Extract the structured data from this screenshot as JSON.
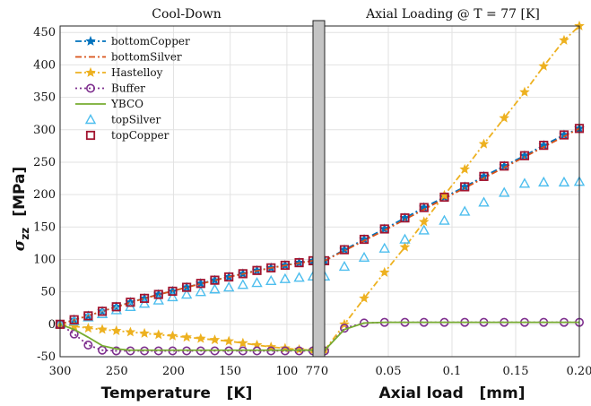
{
  "chart_data": {
    "type": "line",
    "ylabel_symbol": "σ",
    "ylabel_subscript": "zz",
    "ylabel_unit": "[MPa]",
    "ylim": [
      -50,
      460
    ],
    "yticks": [
      -50,
      0,
      50,
      100,
      150,
      200,
      250,
      300,
      350,
      400,
      450
    ],
    "grid": true,
    "legend_position": "top-left",
    "left_panel": {
      "title": "Cool-Down",
      "xlabel": "Temperature   [K]",
      "xlim": [
        300,
        77
      ],
      "x_direction": "reversed",
      "xticks": [
        300,
        250,
        200,
        150,
        100,
        77
      ]
    },
    "right_panel": {
      "title": "Axial Loading @ T = 77 [K]",
      "xlabel": "Axial load   [mm]",
      "xlim": [
        0,
        0.2
      ],
      "xticks": [
        0,
        0.05,
        0.1,
        0.15,
        0.2
      ],
      "xtick_labels": [
        "0",
        "0.05",
        "0.1",
        "0.15",
        "0.20"
      ]
    },
    "series": [
      {
        "name": "bottomCopper",
        "color": "#0072BD",
        "line": "dashdot",
        "marker": "star",
        "cooldown": {
          "x": [
            300,
            287.6,
            275.2,
            262.8,
            250.4,
            238,
            225.6,
            213.2,
            200.8,
            188.4,
            176,
            163.6,
            151.2,
            138.8,
            126.4,
            114,
            101.6,
            89.2,
            77
          ],
          "y": [
            0,
            7,
            13,
            20,
            27,
            34,
            40,
            46,
            51,
            57,
            63,
            68,
            73,
            78,
            83,
            87,
            91,
            95,
            98
          ]
        },
        "loading": {
          "x": [
            0,
            0.0155,
            0.031,
            0.047,
            0.063,
            0.078,
            0.094,
            0.11,
            0.125,
            0.141,
            0.157,
            0.172,
            0.188,
            0.2
          ],
          "y": [
            98,
            115,
            131,
            147,
            164,
            180,
            196,
            212,
            228,
            244,
            260,
            276,
            292,
            302
          ]
        }
      },
      {
        "name": "bottomSilver",
        "color": "#D95319",
        "line": "dashdot",
        "marker": "none",
        "cooldown": {
          "x": [
            300,
            262.8,
            225.6,
            188.4,
            151.2,
            114,
            77
          ],
          "y": [
            0,
            20,
            40,
            57,
            73,
            87,
            98
          ]
        },
        "loading": {
          "x": [
            0,
            0.05,
            0.1,
            0.15,
            0.2
          ],
          "y": [
            98,
            148,
            200,
            251,
            302
          ]
        }
      },
      {
        "name": "Hastelloy",
        "color": "#EDB120",
        "line": "dashdot",
        "marker": "star",
        "cooldown": {
          "x": [
            300,
            287.6,
            275.2,
            262.8,
            250.4,
            238,
            225.6,
            213.2,
            200.8,
            188.4,
            176,
            163.6,
            151.2,
            138.8,
            126.4,
            114,
            101.6,
            89.2,
            77
          ],
          "y": [
            0,
            -3,
            -6,
            -8,
            -10,
            -12,
            -14,
            -16,
            -18,
            -20,
            -22,
            -24,
            -26,
            -29,
            -32,
            -35,
            -37,
            -39,
            -40
          ]
        },
        "loading": {
          "x": [
            0,
            0.0155,
            0.031,
            0.047,
            0.063,
            0.078,
            0.094,
            0.11,
            0.125,
            0.141,
            0.157,
            0.172,
            0.188,
            0.2
          ],
          "y": [
            -40,
            0,
            40,
            80,
            119,
            158,
            199,
            239,
            278,
            318,
            358,
            398,
            438,
            460
          ]
        }
      },
      {
        "name": "Buffer",
        "color": "#7E2F8E",
        "line": "dotted",
        "marker": "circle",
        "cooldown": {
          "x": [
            300,
            287.6,
            275.2,
            262.8,
            250.4,
            238,
            225.6,
            213.2,
            200.8,
            188.4,
            176,
            163.6,
            151.2,
            138.8,
            126.4,
            114,
            101.6,
            89.2,
            77
          ],
          "y": [
            0,
            -15,
            -32,
            -40,
            -41,
            -41,
            -41,
            -41,
            -41,
            -41,
            -41,
            -41,
            -41,
            -41,
            -41,
            -41,
            -41,
            -41,
            -41
          ]
        },
        "loading": {
          "x": [
            0,
            0.0155,
            0.031,
            0.047,
            0.063,
            0.078,
            0.094,
            0.11,
            0.125,
            0.141,
            0.157,
            0.172,
            0.188,
            0.2
          ],
          "y": [
            -41,
            -6,
            2,
            3,
            3,
            3,
            3,
            3,
            3,
            3,
            3,
            3,
            3,
            3
          ]
        }
      },
      {
        "name": "YBCO",
        "color": "#77AC30",
        "line": "solid",
        "marker": "none",
        "cooldown": {
          "x": [
            300,
            287.6,
            275.2,
            262.8,
            250.4,
            238,
            225.6,
            213.2,
            200.8,
            188.4,
            176,
            163.6,
            151.2,
            138.8,
            126.4,
            114,
            101.6,
            89.2,
            77
          ],
          "y": [
            0,
            -8,
            -20,
            -33,
            -38,
            -40,
            -40,
            -40,
            -40,
            -40,
            -40,
            -40,
            -40,
            -40,
            -40,
            -40,
            -40,
            -40,
            -40
          ]
        },
        "loading": {
          "x": [
            0,
            0.0155,
            0.031,
            0.047,
            0.063,
            0.078,
            0.094,
            0.11,
            0.125,
            0.141,
            0.157,
            0.172,
            0.188,
            0.2
          ],
          "y": [
            -40,
            -8,
            2,
            3,
            3,
            3,
            3,
            3,
            3,
            3,
            3,
            3,
            3,
            3
          ]
        }
      },
      {
        "name": "topSilver",
        "color": "#4DBEEE",
        "line": "none",
        "marker": "triangle",
        "cooldown": {
          "x": [
            300,
            287.6,
            275.2,
            262.8,
            250.4,
            238,
            225.6,
            213.2,
            200.8,
            188.4,
            176,
            163.6,
            151.2,
            138.8,
            126.4,
            114,
            101.6,
            89.2,
            77
          ],
          "y": [
            0,
            5,
            11,
            16,
            22,
            27,
            32,
            37,
            42,
            46,
            50,
            54,
            57,
            61,
            64,
            67,
            70,
            72,
            74
          ]
        },
        "loading": {
          "x": [
            0,
            0.0155,
            0.031,
            0.047,
            0.063,
            0.078,
            0.094,
            0.11,
            0.125,
            0.141,
            0.157,
            0.172,
            0.188,
            0.2
          ],
          "y": [
            74,
            89,
            103,
            117,
            131,
            145,
            160,
            174,
            188,
            203,
            217,
            219,
            219,
            220
          ]
        }
      },
      {
        "name": "topCopper",
        "color": "#A2142F",
        "line": "none",
        "marker": "square",
        "cooldown": {
          "x": [
            300,
            287.6,
            275.2,
            262.8,
            250.4,
            238,
            225.6,
            213.2,
            200.8,
            188.4,
            176,
            163.6,
            151.2,
            138.8,
            126.4,
            114,
            101.6,
            89.2,
            77
          ],
          "y": [
            0,
            7,
            13,
            20,
            27,
            34,
            40,
            46,
            51,
            57,
            63,
            68,
            73,
            78,
            83,
            87,
            91,
            95,
            98
          ]
        },
        "loading": {
          "x": [
            0,
            0.0155,
            0.031,
            0.047,
            0.063,
            0.078,
            0.094,
            0.11,
            0.125,
            0.141,
            0.157,
            0.172,
            0.188,
            0.2
          ],
          "y": [
            98,
            115,
            131,
            147,
            164,
            180,
            196,
            212,
            228,
            244,
            260,
            276,
            292,
            302
          ]
        }
      }
    ]
  }
}
